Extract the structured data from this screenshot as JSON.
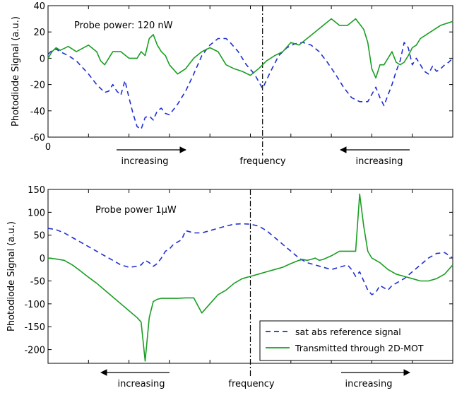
{
  "colors": {
    "reference": "#1f2fd0",
    "transmitted": "#1a9e22",
    "axis": "#000000",
    "marker": "#000000"
  },
  "chart_data": [
    {
      "type": "line",
      "ylabel": "Photodiode Signal (a.u.)",
      "xlabel": "",
      "xlim": [
        0,
        100
      ],
      "ylim": [
        -60,
        40
      ],
      "y_ticks": [
        40,
        20,
        0,
        -20,
        -40,
        -60
      ],
      "x_tick_labels": [
        "0"
      ],
      "annotations": [
        "Probe power: 120 nW"
      ],
      "axis_notes": [
        "increasing",
        "frequency",
        "increasing"
      ],
      "arrow_directions": [
        "right",
        "left"
      ],
      "legend": "none",
      "grid": false,
      "marker_x": 53,
      "series": [
        {
          "key": "reference",
          "style": "dashed",
          "x": [
            0,
            1,
            2,
            3,
            5,
            7,
            10,
            12,
            14,
            15,
            16,
            17,
            18,
            19,
            20,
            21,
            22,
            23,
            24,
            25,
            26,
            27,
            28,
            29,
            30,
            32,
            34,
            36,
            38,
            40,
            42,
            44,
            45,
            47,
            49,
            51,
            53,
            55,
            57,
            59,
            61,
            63,
            65,
            67,
            69,
            71,
            73,
            75,
            77,
            79,
            81,
            82,
            83,
            84,
            85,
            86,
            87,
            88,
            89,
            90,
            91,
            92,
            93,
            94,
            95,
            96,
            97,
            98,
            99,
            100
          ],
          "y": [
            3,
            6,
            7,
            5,
            2,
            -2,
            -12,
            -20,
            -26,
            -25,
            -20,
            -25,
            -28,
            -17,
            -30,
            -42,
            -52,
            -54,
            -45,
            -44,
            -47,
            -40,
            -38,
            -42,
            -43,
            -35,
            -25,
            -12,
            2,
            10,
            15,
            15,
            12,
            5,
            -5,
            -12,
            -23,
            -10,
            2,
            8,
            11,
            12,
            10,
            5,
            -3,
            -12,
            -22,
            -30,
            -33,
            -33,
            -22,
            -30,
            -36,
            -28,
            -20,
            -10,
            -2,
            12,
            8,
            -5,
            0,
            -5,
            -10,
            -12,
            -6,
            -10,
            -8,
            -5,
            -3,
            0
          ]
        },
        {
          "key": "transmitted",
          "style": "solid",
          "x": [
            0,
            1,
            2,
            3,
            5,
            7,
            10,
            12,
            13,
            14,
            16,
            18,
            20,
            22,
            23,
            24,
            25,
            26,
            27,
            28,
            29,
            30,
            32,
            34,
            36,
            38,
            40,
            42,
            44,
            46,
            48,
            50,
            52,
            53,
            54,
            56,
            58,
            60,
            62,
            64,
            66,
            68,
            70,
            72,
            74,
            76,
            78,
            79,
            80,
            81,
            82,
            83,
            84,
            85,
            86,
            87,
            88,
            89,
            90,
            91,
            92,
            93,
            94,
            95,
            96,
            97,
            98,
            99,
            100
          ],
          "y": [
            0,
            5,
            8,
            6,
            9,
            5,
            10,
            5,
            -2,
            -5,
            5,
            5,
            0,
            0,
            5,
            2,
            15,
            18,
            10,
            5,
            2,
            -5,
            -12,
            -8,
            0,
            5,
            8,
            5,
            -5,
            -8,
            -10,
            -13,
            -8,
            -5,
            -2,
            2,
            5,
            12,
            10,
            15,
            20,
            25,
            30,
            25,
            25,
            30,
            22,
            12,
            -8,
            -15,
            -5,
            -5,
            0,
            5,
            -3,
            -5,
            -3,
            2,
            8,
            10,
            15,
            17,
            19,
            21,
            23,
            25,
            26,
            27,
            28
          ]
        }
      ]
    },
    {
      "type": "line",
      "ylabel": "Photodiode Signal (a.u.)",
      "xlabel": "",
      "xlim": [
        0,
        100
      ],
      "ylim": [
        -230,
        150
      ],
      "y_ticks": [
        150,
        100,
        50,
        0,
        -50,
        -100,
        -150,
        -200
      ],
      "annotations": [
        "Probe power 1μW"
      ],
      "axis_notes": [
        "increasing",
        "frequency",
        "increasing"
      ],
      "arrow_directions": [
        "left",
        "right"
      ],
      "legend": "bottom-right",
      "grid": false,
      "marker_x": 50,
      "series": [
        {
          "key": "reference",
          "name": "sat abs reference signal",
          "style": "dashed",
          "x": [
            0,
            2,
            4,
            6,
            8,
            10,
            12,
            14,
            16,
            18,
            20,
            22,
            23,
            24,
            25,
            26,
            27,
            28,
            29,
            30,
            31,
            32,
            33,
            34,
            36,
            38,
            40,
            42,
            44,
            46,
            48,
            50,
            52,
            54,
            56,
            58,
            60,
            62,
            64,
            66,
            68,
            70,
            72,
            74,
            75,
            76,
            77,
            78,
            79,
            80,
            81,
            82,
            83,
            84,
            85,
            86,
            88,
            90,
            92,
            94,
            96,
            98,
            100
          ],
          "y": [
            65,
            62,
            55,
            45,
            35,
            25,
            15,
            5,
            -5,
            -15,
            -20,
            -18,
            -15,
            -5,
            -10,
            -18,
            -12,
            0,
            15,
            20,
            30,
            35,
            40,
            60,
            55,
            55,
            60,
            65,
            70,
            74,
            75,
            74,
            70,
            60,
            45,
            30,
            15,
            0,
            -10,
            -15,
            -20,
            -25,
            -20,
            -15,
            -25,
            -40,
            -30,
            -50,
            -70,
            -80,
            -75,
            -60,
            -65,
            -70,
            -60,
            -55,
            -45,
            -30,
            -15,
            0,
            10,
            12,
            0
          ]
        },
        {
          "key": "transmitted",
          "name": "Transmitted through 2D-MOT",
          "style": "solid",
          "x": [
            0,
            2,
            4,
            6,
            8,
            10,
            12,
            14,
            16,
            18,
            20,
            22,
            23,
            24,
            25,
            26,
            27,
            28,
            29,
            30,
            32,
            34,
            36,
            38,
            40,
            42,
            44,
            46,
            48,
            50,
            52,
            54,
            56,
            58,
            60,
            62,
            63,
            64,
            65,
            66,
            67,
            68,
            70,
            72,
            74,
            75,
            76,
            77,
            78,
            79,
            80,
            82,
            84,
            86,
            88,
            90,
            92,
            94,
            96,
            98,
            100
          ],
          "y": [
            0,
            -2,
            -5,
            -15,
            -28,
            -42,
            -55,
            -70,
            -85,
            -100,
            -115,
            -130,
            -140,
            -225,
            -130,
            -95,
            -90,
            -88,
            -88,
            -88,
            -88,
            -87,
            -87,
            -120,
            -100,
            -80,
            -70,
            -55,
            -45,
            -40,
            -35,
            -30,
            -25,
            -20,
            -12,
            -5,
            -3,
            -5,
            -3,
            0,
            -5,
            -3,
            5,
            15,
            15,
            15,
            15,
            140,
            70,
            15,
            0,
            -10,
            -25,
            -35,
            -40,
            -45,
            -50,
            -50,
            -45,
            -35,
            -15
          ]
        }
      ]
    }
  ]
}
